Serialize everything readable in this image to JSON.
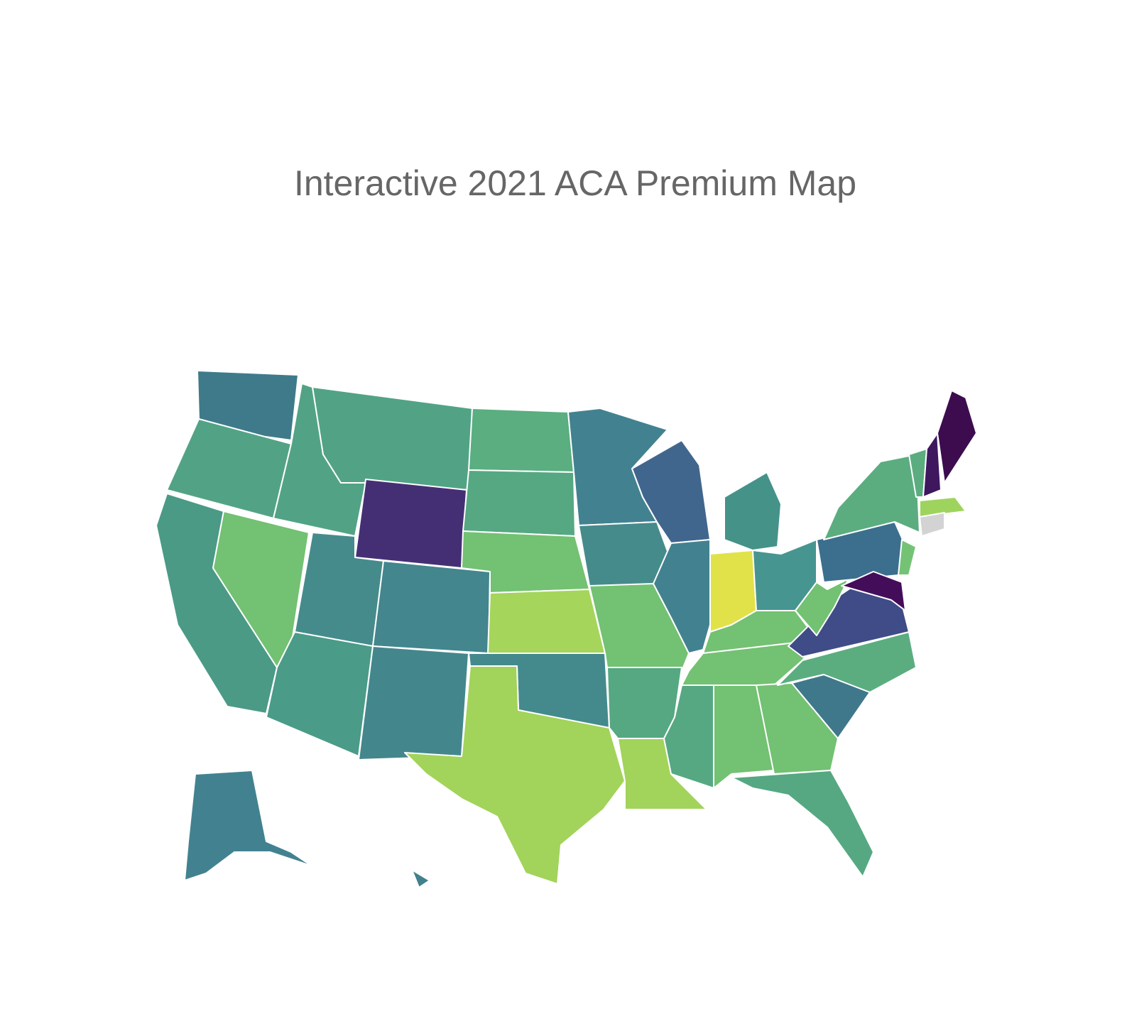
{
  "title": "Interactive 2021 ACA Premium Map",
  "region_colors": [
    "#3f7a8b",
    "#52a385",
    "#4a9a86",
    "#73c172",
    "#52a385",
    "#52a385",
    "#452f74",
    "#468b8c",
    "#43868d",
    "#4a9b87",
    "#43878d",
    "#5aae80",
    "#55a882",
    "#73c172",
    "#a5d55b",
    "#448a8d",
    "#a2d35b",
    "#428290",
    "#468b8c",
    "#73c172",
    "#55a882",
    "#a2d35b",
    "#41668d",
    "#428290",
    "#e1e24a",
    "#459289",
    "#479590",
    "#73c172",
    "#73c172",
    "#55a882",
    "#73c172",
    "#73c172",
    "#55a882",
    "#3f788b",
    "#5bad80",
    "#404c87",
    "#73c172",
    "#3b6f8d",
    "#5bad80",
    "#440d5a",
    "#74c375",
    "#5bad80",
    "#3e175f",
    "#3d0c4f",
    "#9ed45d",
    "#d3d3d3",
    "#428290",
    "#41818c"
  ]
}
